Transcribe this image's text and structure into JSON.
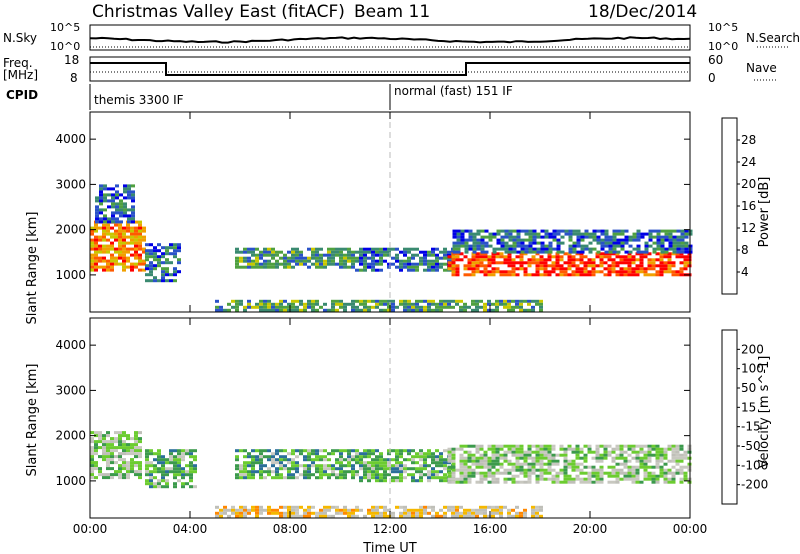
{
  "header": {
    "title": "Christmas Valley East (fitACF)",
    "beam": "Beam 11",
    "date": "18/Dec/2014"
  },
  "summary_panels": {
    "nsky_label": "N.Sky",
    "nsky_ticks": [
      "10^5",
      "10^0"
    ],
    "nsearch_label": "N.Search",
    "nsearch_ticks": [
      "10^5",
      "10^0"
    ],
    "freq_label_1": "Freq.",
    "freq_label_2": "[MHz]",
    "freq_ticks": [
      "18",
      "8"
    ],
    "nave_label": "Nave",
    "nave_ticks": [
      "60",
      "0"
    ],
    "cpid_label": "CPID",
    "cpid_1": "themis 3300 IF",
    "cpid_2": "normal (fast) 151 IF"
  },
  "colors": {
    "power": [
      "#0000e6",
      "#2a52c8",
      "#3a8a70",
      "#4fa040",
      "#c8c800",
      "#f0a000",
      "#ff5a00",
      "#ff0000"
    ],
    "velocity": [
      "#2030c0",
      "#2b6f9a",
      "#3c9a4c",
      "#6ccc30",
      "#c8c8c0",
      "#bfbfb8",
      "#f5b800",
      "#ff8800",
      "#ff4800",
      "#ff0000"
    ]
  },
  "chart_data": [
    {
      "type": "heatmap",
      "name": "power",
      "xlabel": "",
      "ylabel": "Slant Range [km]",
      "xlim": [
        0,
        24
      ],
      "ylim": [
        180,
        4600
      ],
      "x_ticks": [
        "00:00",
        "04:00",
        "08:00",
        "12:00",
        "16:00",
        "20:00",
        "00:00"
      ],
      "y_ticks": [
        1000,
        2000,
        3000,
        4000
      ],
      "colorbar_label": "Power [dB]",
      "colorbar_ticks": [
        "4",
        "8",
        "12",
        "16",
        "20",
        "24",
        "28"
      ],
      "colorbar_range": [
        0,
        30
      ],
      "regions": [
        {
          "t0": 0.0,
          "t1": 2.2,
          "r0": 1100,
          "r1": 2200,
          "level": 6
        },
        {
          "t0": 0.2,
          "t1": 1.8,
          "r0": 2200,
          "r1": 3000,
          "level": 2
        },
        {
          "t0": 2.2,
          "t1": 3.6,
          "r0": 900,
          "r1": 1700,
          "level": 2
        },
        {
          "t0": 5.8,
          "t1": 10.6,
          "r0": 1150,
          "r1": 1600,
          "level": 3
        },
        {
          "t0": 10.6,
          "t1": 14.6,
          "r0": 1100,
          "r1": 1600,
          "level": 2
        },
        {
          "t0": 14.3,
          "t1": 24.0,
          "r0": 1000,
          "r1": 1500,
          "level": 7
        },
        {
          "t0": 14.5,
          "t1": 24.0,
          "r0": 1500,
          "r1": 2000,
          "level": 2
        },
        {
          "t0": 5.0,
          "t1": 18.0,
          "r0": 200,
          "r1": 450,
          "level": 3
        }
      ]
    },
    {
      "type": "heatmap",
      "name": "velocity",
      "xlabel": "Time UT",
      "ylabel": "Slant Range [km]",
      "xlim": [
        0,
        24
      ],
      "ylim": [
        180,
        4600
      ],
      "x_ticks": [
        "00:00",
        "04:00",
        "08:00",
        "12:00",
        "16:00",
        "20:00",
        "00:00"
      ],
      "y_ticks": [
        1000,
        2000,
        3000,
        4000
      ],
      "colorbar_label": "Velocity [m s^-1]",
      "colorbar_ticks": [
        "200",
        "100",
        "50",
        "15",
        "-15",
        "-50",
        "-100",
        "-200"
      ],
      "colorbar_range": [
        -250,
        250
      ],
      "regions": [
        {
          "t0": 0.0,
          "t1": 2.0,
          "r0": 1100,
          "r1": 2100,
          "level": 4
        },
        {
          "t0": 2.2,
          "t1": 4.2,
          "r0": 900,
          "r1": 1700,
          "level": 3
        },
        {
          "t0": 5.8,
          "t1": 10.6,
          "r0": 1100,
          "r1": 1700,
          "level": 3
        },
        {
          "t0": 10.6,
          "t1": 14.6,
          "r0": 1000,
          "r1": 1700,
          "level": 3
        },
        {
          "t0": 14.3,
          "t1": 24.0,
          "r0": 1000,
          "r1": 1800,
          "level": 4
        },
        {
          "t0": 5.0,
          "t1": 18.0,
          "r0": 200,
          "r1": 450,
          "level": 6
        }
      ]
    }
  ]
}
